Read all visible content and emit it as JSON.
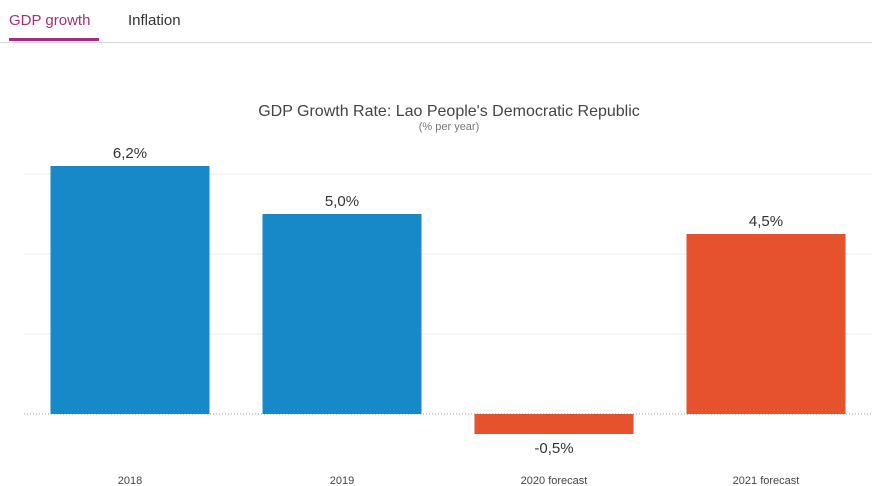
{
  "tabs": {
    "gdp_label": "GDP growth",
    "inflation_label": "Inflation"
  },
  "chart_data": {
    "type": "bar",
    "title": "GDP Growth Rate: Lao People's Democratic Republic",
    "subtitle": "(% per year)",
    "xlabel": "",
    "ylabel": "",
    "categories": [
      "2018",
      "2019",
      "2020 forecast",
      "2021 forecast"
    ],
    "values": [
      6.2,
      5.0,
      -0.5,
      4.5
    ],
    "data_labels": [
      "6,2%",
      "5,0%",
      "-0,5%",
      "4,5%"
    ],
    "bar_colors": [
      "#1789c8",
      "#1789c8",
      "#e5522d",
      "#e5522d"
    ],
    "ylim": [
      -1.2,
      6.8
    ],
    "gridlines": [
      2,
      4,
      6
    ],
    "grid": true,
    "legend": "none"
  }
}
